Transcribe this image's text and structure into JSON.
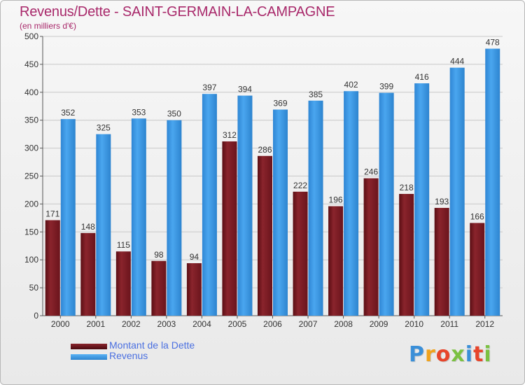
{
  "header": {
    "title": "Revenus/Dette - SAINT-GERMAIN-LA-CAMPAGNE",
    "subtitle": "(en milliers d'€)"
  },
  "legend": {
    "dette_label": "Montant de la Dette",
    "revenus_label": "Revenus"
  },
  "logo": {
    "text": "Proxiti"
  },
  "colors": {
    "dette": "#7a1c24",
    "revenus": "#3b95e0",
    "title": "#a8286a",
    "legend_text": "#4a6fe0"
  },
  "chart_data": {
    "type": "bar",
    "title": "Revenus/Dette - SAINT-GERMAIN-LA-CAMPAGNE",
    "ylabel": "(en milliers d'€)",
    "categories": [
      "2000",
      "2001",
      "2002",
      "2003",
      "2004",
      "2005",
      "2006",
      "2007",
      "2008",
      "2009",
      "2010",
      "2011",
      "2012"
    ],
    "series": [
      {
        "name": "Montant de la Dette",
        "values": [
          171,
          148,
          115,
          98,
          94,
          312,
          286,
          222,
          196,
          246,
          218,
          193,
          166
        ]
      },
      {
        "name": "Revenus",
        "values": [
          352,
          325,
          353,
          350,
          397,
          394,
          369,
          385,
          402,
          399,
          416,
          444,
          478
        ]
      }
    ],
    "ylim": [
      0,
      500
    ],
    "yticks": [
      0,
      50,
      100,
      150,
      200,
      250,
      300,
      350,
      400,
      450,
      500
    ],
    "grid": true,
    "legend_position": "bottom-left"
  }
}
